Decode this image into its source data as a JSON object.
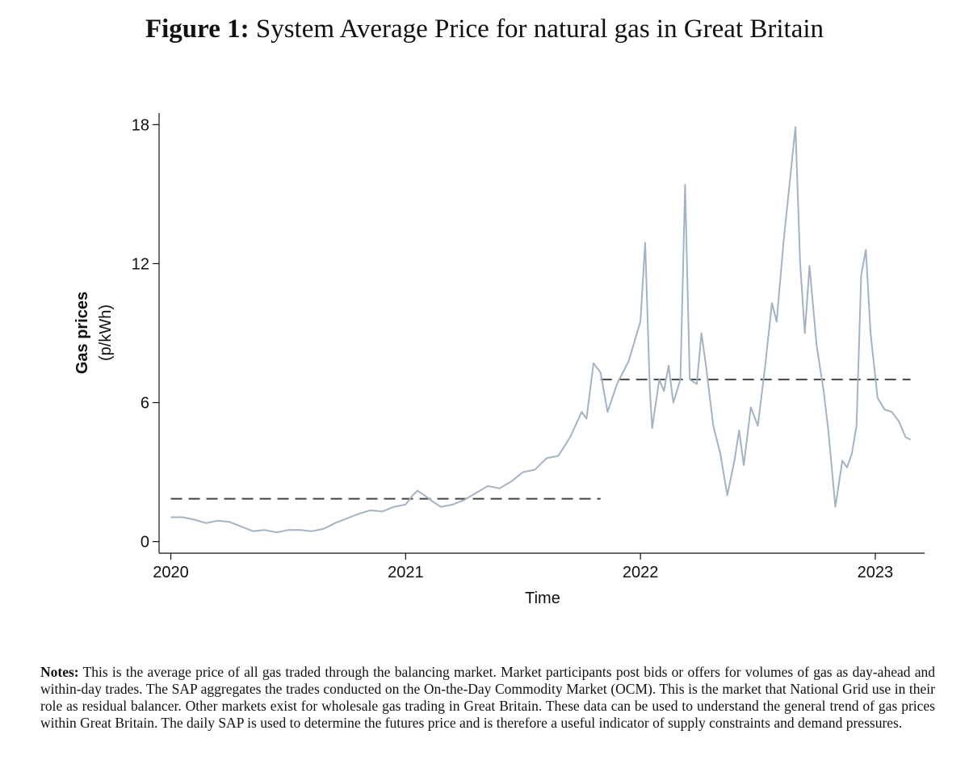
{
  "chart_data": {
    "type": "line",
    "title_prefix": "Figure 1:",
    "title": "System Average Price for natural gas in Great Britain",
    "x_label": "Time",
    "y_label": "Gas prices",
    "y_unit": "(p/kWh)",
    "x": [
      2020.0,
      2020.05,
      2020.1,
      2020.15,
      2020.2,
      2020.25,
      2020.3,
      2020.35,
      2020.4,
      2020.45,
      2020.5,
      2020.55,
      2020.6,
      2020.65,
      2020.7,
      2020.75,
      2020.8,
      2020.85,
      2020.9,
      2020.95,
      2021.0,
      2021.03,
      2021.05,
      2021.08,
      2021.12,
      2021.15,
      2021.2,
      2021.25,
      2021.3,
      2021.35,
      2021.4,
      2021.45,
      2021.5,
      2021.55,
      2021.6,
      2021.65,
      2021.7,
      2021.75,
      2021.77,
      2021.8,
      2021.83,
      2021.86,
      2021.9,
      2021.95,
      2022.0,
      2022.02,
      2022.04,
      2022.05,
      2022.08,
      2022.1,
      2022.12,
      2022.14,
      2022.17,
      2022.19,
      2022.21,
      2022.24,
      2022.26,
      2022.28,
      2022.31,
      2022.34,
      2022.37,
      2022.4,
      2022.42,
      2022.44,
      2022.47,
      2022.5,
      2022.53,
      2022.56,
      2022.58,
      2022.61,
      2022.66,
      2022.68,
      2022.7,
      2022.72,
      2022.75,
      2022.78,
      2022.8,
      2022.83,
      2022.86,
      2022.88,
      2022.9,
      2022.92,
      2022.94,
      2022.96,
      2022.98,
      2023.01,
      2023.04,
      2023.07,
      2023.1,
      2023.13,
      2023.15
    ],
    "series": [
      {
        "color": "#a3b3c4",
        "values": [
          1.05,
          1.05,
          0.95,
          0.8,
          0.9,
          0.85,
          0.65,
          0.45,
          0.5,
          0.4,
          0.5,
          0.5,
          0.45,
          0.55,
          0.8,
          1.0,
          1.2,
          1.35,
          1.3,
          1.5,
          1.6,
          2.0,
          2.2,
          2.0,
          1.7,
          1.5,
          1.6,
          1.8,
          2.1,
          2.4,
          2.3,
          2.6,
          3.0,
          3.1,
          3.6,
          3.7,
          4.5,
          5.6,
          5.3,
          7.7,
          7.3,
          5.6,
          6.8,
          7.8,
          9.5,
          12.9,
          6.5,
          4.9,
          7.0,
          6.5,
          7.6,
          6.0,
          7.0,
          15.4,
          7.0,
          6.8,
          9.0,
          7.5,
          5.0,
          3.8,
          2.0,
          3.5,
          4.8,
          3.3,
          5.8,
          5.0,
          7.5,
          10.3,
          9.5,
          13.0,
          17.9,
          12.0,
          9.0,
          11.9,
          8.5,
          6.5,
          4.8,
          1.5,
          3.5,
          3.2,
          3.8,
          5.0,
          11.5,
          12.6,
          9.0,
          6.2,
          5.7,
          5.6,
          5.2,
          4.5,
          4.4
        ]
      }
    ],
    "xlim": [
      2019.95,
      2023.21
    ],
    "xticks": [
      2020,
      2021,
      2022,
      2023
    ],
    "ylim": [
      -0.5,
      18.5
    ],
    "yticks": [
      0,
      6,
      12,
      18
    ],
    "reference_lines": [
      {
        "x": [
          2020.0,
          2021.83
        ],
        "value": 1.85,
        "color": "#444444"
      },
      {
        "x": [
          2021.83,
          2023.15
        ],
        "value": 7.0,
        "color": "#444444"
      }
    ]
  },
  "notes": {
    "label": "Notes:",
    "text": "This is the average price of all gas traded through the balancing market. Market participants post bids or offers for volumes of gas as day-ahead and within-day trades. The SAP aggregates the trades conducted on the On-the-Day Commodity Market (OCM). This is the market that National Grid use in their role as residual balancer. Other markets exist for wholesale gas trading in Great Britain. These data can be used to understand the general trend of gas prices within Great Britain. The daily SAP is used to determine the futures price and is therefore a useful indicator of supply constraints and demand pressures."
  }
}
